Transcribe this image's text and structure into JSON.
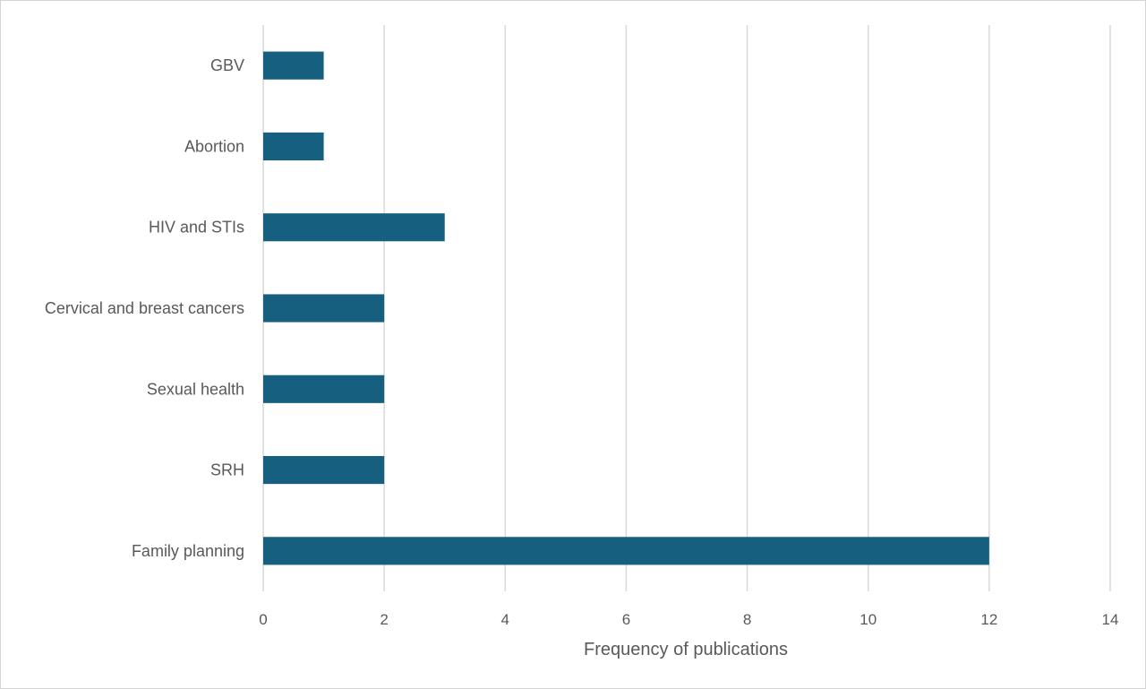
{
  "chart_data": {
    "type": "bar",
    "orientation": "horizontal",
    "title": "",
    "xlabel": "Frequency of publications",
    "ylabel": "",
    "categories": [
      "GBV",
      "Abortion",
      "HIV and STIs",
      "Cervical and breast cancers",
      "Sexual health",
      "SRH",
      "Family planning"
    ],
    "values": [
      1,
      1,
      3,
      2,
      2,
      2,
      12
    ],
    "xlim": [
      0,
      14
    ],
    "xticks": [
      "0",
      "2",
      "4",
      "6",
      "8",
      "10",
      "12",
      "14"
    ],
    "grid": "vertical",
    "legend": "none",
    "colors": {
      "bar": "#175F7E",
      "grid": "#D9D9D9",
      "text": "#595959",
      "border": "#D4D4D4"
    }
  }
}
